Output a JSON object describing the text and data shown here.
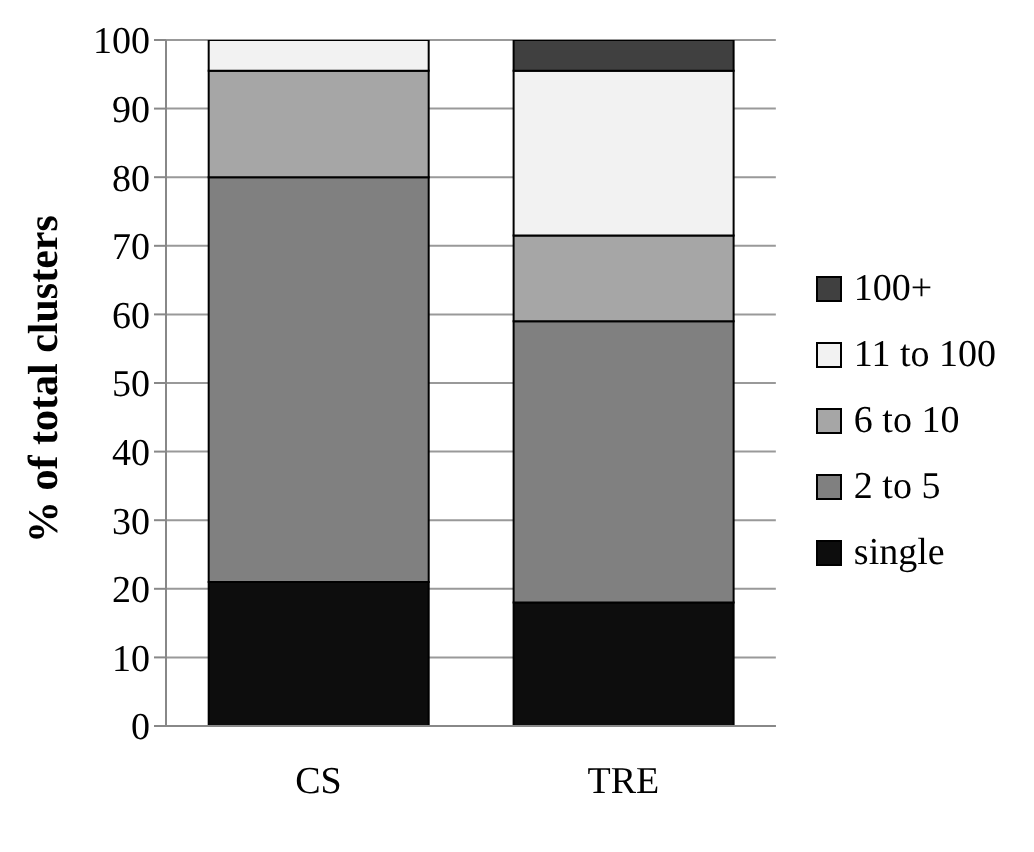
{
  "chart_data": {
    "type": "bar",
    "ylabel": "% of total clusters",
    "categories": [
      "CS",
      "TRE"
    ],
    "stacked": true,
    "series": [
      {
        "name": "single",
        "color": "#0d0d0d",
        "values": [
          21,
          18
        ]
      },
      {
        "name": "2 to 5",
        "color": "#808080",
        "values": [
          59,
          41
        ]
      },
      {
        "name": "6 to 10",
        "color": "#a6a6a6",
        "values": [
          15.5,
          12.5
        ]
      },
      {
        "name": "11 to 100",
        "color": "#f2f2f2",
        "values": [
          4.5,
          24
        ]
      },
      {
        "name": "100+",
        "color": "#404040",
        "values": [
          0,
          4.5
        ]
      }
    ],
    "ylim": [
      0,
      100
    ],
    "yticks": [
      0,
      10,
      20,
      30,
      40,
      50,
      60,
      70,
      80,
      90,
      100
    ],
    "grid": "y",
    "legend": "right"
  }
}
